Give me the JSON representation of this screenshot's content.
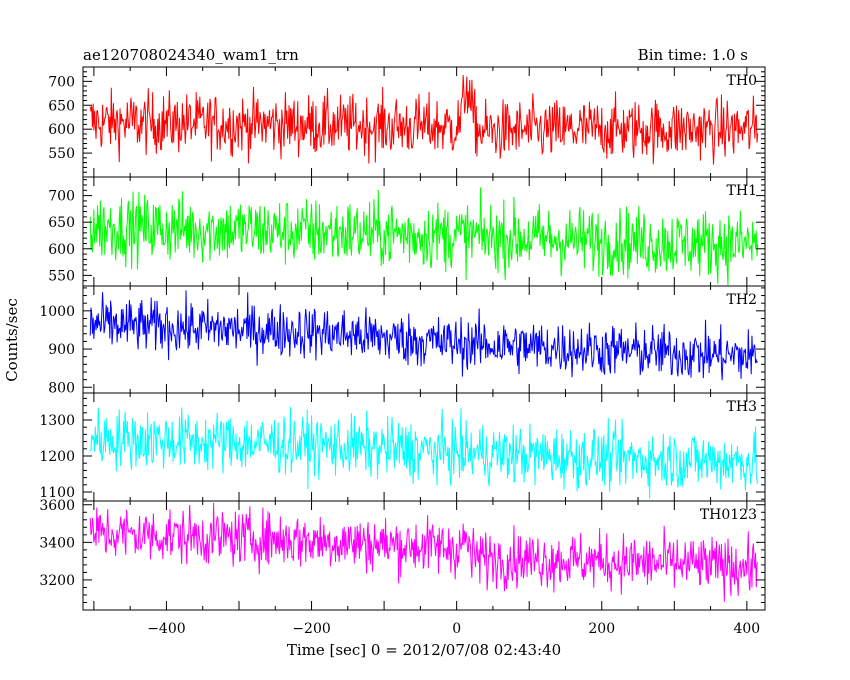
{
  "header": {
    "title": "ae120708024340_wam1_trn",
    "bin_time": "Bin time: 1.0 s"
  },
  "chart_data": {
    "type": "line",
    "title": "ae120708024340_wam1_trn",
    "xlabel": "Time [sec] 0 = 2012/07/08 02:43:40",
    "ylabel": "Counts/sec",
    "xlim": [
      -515,
      425
    ],
    "x_ticks": [
      -400,
      -200,
      0,
      200,
      400
    ],
    "x_tick_labels": [
      "−400",
      "−200",
      "0",
      "200",
      "400"
    ],
    "x_range": [
      -505,
      415
    ],
    "bin": 1.0,
    "grid": false,
    "series": [
      {
        "name": "TH0",
        "color": "#ff0000",
        "ylim": [
          500,
          730
        ],
        "yticks": [
          550,
          600,
          650,
          700
        ],
        "trend": [
          [
            -505,
            615
          ],
          [
            -100,
            607
          ],
          [
            0,
            605
          ],
          [
            5,
            615
          ],
          [
            10,
            660
          ],
          [
            14,
            700
          ],
          [
            20,
            640
          ],
          [
            30,
            595
          ],
          [
            200,
            600
          ],
          [
            415,
            600
          ]
        ],
        "noise": 32
      },
      {
        "name": "TH1",
        "color": "#00ff00",
        "ylim": [
          530,
          735
        ],
        "yticks": [
          550,
          600,
          650,
          700
        ],
        "trend": [
          [
            -505,
            642
          ],
          [
            -200,
            632
          ],
          [
            0,
            625
          ],
          [
            200,
            615
          ],
          [
            415,
            608
          ]
        ],
        "noise": 32
      },
      {
        "name": "TH2",
        "color": "#0000ff",
        "ylim": [
          785,
          1065
        ],
        "yticks": [
          800,
          900,
          1000
        ],
        "trend": [
          [
            -505,
            965
          ],
          [
            -200,
            945
          ],
          [
            0,
            915
          ],
          [
            200,
            898
          ],
          [
            415,
            880
          ]
        ],
        "noise": 35
      },
      {
        "name": "TH3",
        "color": "#00ffff",
        "ylim": [
          1075,
          1375
        ],
        "yticks": [
          1100,
          1200,
          1300
        ],
        "trend": [
          [
            -505,
            1250
          ],
          [
            -200,
            1232
          ],
          [
            0,
            1210
          ],
          [
            200,
            1195
          ],
          [
            415,
            1185
          ]
        ],
        "noise": 42
      },
      {
        "name": "TH0123",
        "color": "#ff00ff",
        "ylim": [
          3040,
          3620
        ],
        "yticks": [
          3200,
          3400,
          3600
        ],
        "trend": [
          [
            -505,
            3450
          ],
          [
            -200,
            3410
          ],
          [
            0,
            3370
          ],
          [
            8,
            3390
          ],
          [
            14,
            3420
          ],
          [
            20,
            3320
          ],
          [
            200,
            3300
          ],
          [
            415,
            3270
          ]
        ],
        "noise": 75
      }
    ]
  }
}
